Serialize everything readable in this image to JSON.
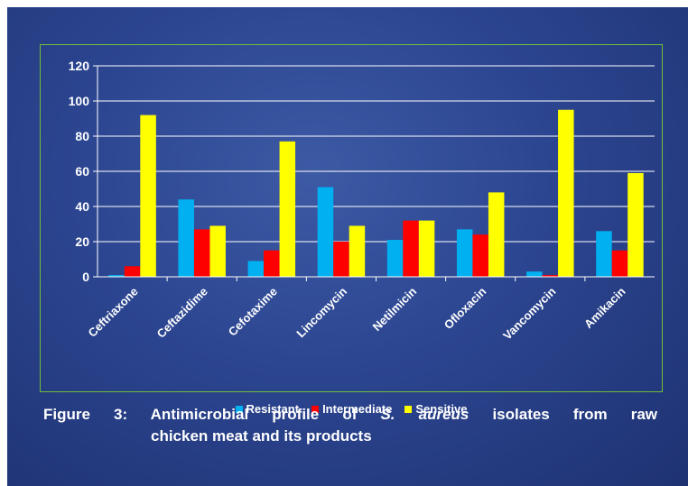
{
  "caption": {
    "prefix": "Figure 3: Antimicrobial profile of",
    "species": "S. aureus",
    "suffix": "isolates from raw",
    "line2": "chicken meat and its products"
  },
  "colors": {
    "background": "#2c4590",
    "frame": "#6fbf3a",
    "text": "#ffffff"
  },
  "chart_data": {
    "type": "bar",
    "categories": [
      "Ceftriaxone",
      "Ceftazidime",
      "Cefotaxime",
      "Lincomycin",
      "Netilmicin",
      "Ofloxacin",
      "Vancomycin",
      "Amikacin"
    ],
    "series": [
      {
        "name": "Resistant",
        "color": "#00b0f0",
        "values": [
          1,
          44,
          9,
          51,
          21,
          27,
          3,
          26
        ]
      },
      {
        "name": "Intermediate",
        "color": "#ff0000",
        "values": [
          6,
          27,
          15,
          20,
          32,
          24,
          1,
          15
        ]
      },
      {
        "name": "Sensitive",
        "color": "#ffff00",
        "values": [
          92,
          29,
          77,
          29,
          32,
          48,
          95,
          59
        ]
      }
    ],
    "yticks": [
      0,
      20,
      40,
      60,
      80,
      100,
      120
    ],
    "ylim": [
      0,
      120
    ],
    "grid": true,
    "legend": "bottom"
  }
}
